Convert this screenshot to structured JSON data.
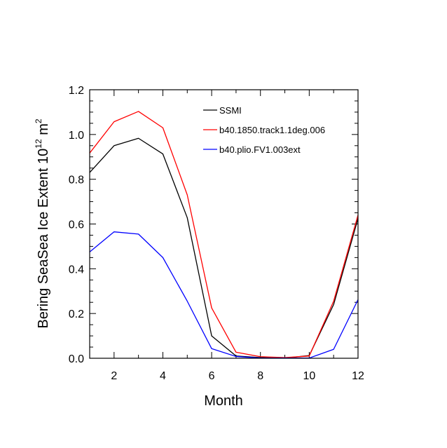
{
  "chart_data": {
    "type": "line",
    "title": "",
    "xlabel": "Month",
    "ylabel_main": "Bering SeaSea Ice Extent 10",
    "ylabel_exp1": "12",
    "ylabel_unit": " m",
    "ylabel_exp2": "2",
    "xlim": [
      1,
      12
    ],
    "ylim": [
      0,
      1.2
    ],
    "x_ticks": [
      2,
      4,
      6,
      8,
      10,
      12
    ],
    "y_ticks": [
      0.0,
      0.2,
      0.4,
      0.6,
      0.8,
      1.0,
      1.2
    ],
    "x_tick_labels": [
      "2",
      "4",
      "6",
      "8",
      "10",
      "12"
    ],
    "y_tick_labels": [
      "0.0",
      "0.2",
      "0.4",
      "0.6",
      "0.8",
      "1.0",
      "1.2"
    ],
    "x": [
      1,
      2,
      3,
      4,
      5,
      6,
      7,
      8,
      9,
      10,
      11,
      12
    ],
    "legend_position": "top-right",
    "series": [
      {
        "name": "SSMI",
        "color": "#000000",
        "values": [
          0.83,
          0.95,
          0.983,
          0.913,
          0.628,
          0.1,
          0.01,
          0.003,
          0.001,
          0.012,
          0.24,
          0.625
        ]
      },
      {
        "name": "b40.1850.track1.1deg.006",
        "color": "#ff0000",
        "values": [
          0.917,
          1.057,
          1.103,
          1.03,
          0.73,
          0.225,
          0.027,
          0.007,
          0.003,
          0.01,
          0.255,
          0.64
        ]
      },
      {
        "name": "b40.plio.FV1.003ext",
        "color": "#0000ff",
        "values": [
          0.475,
          0.565,
          0.555,
          0.45,
          0.255,
          0.043,
          0.008,
          0.001,
          0.001,
          0.001,
          0.04,
          0.262
        ]
      }
    ]
  }
}
